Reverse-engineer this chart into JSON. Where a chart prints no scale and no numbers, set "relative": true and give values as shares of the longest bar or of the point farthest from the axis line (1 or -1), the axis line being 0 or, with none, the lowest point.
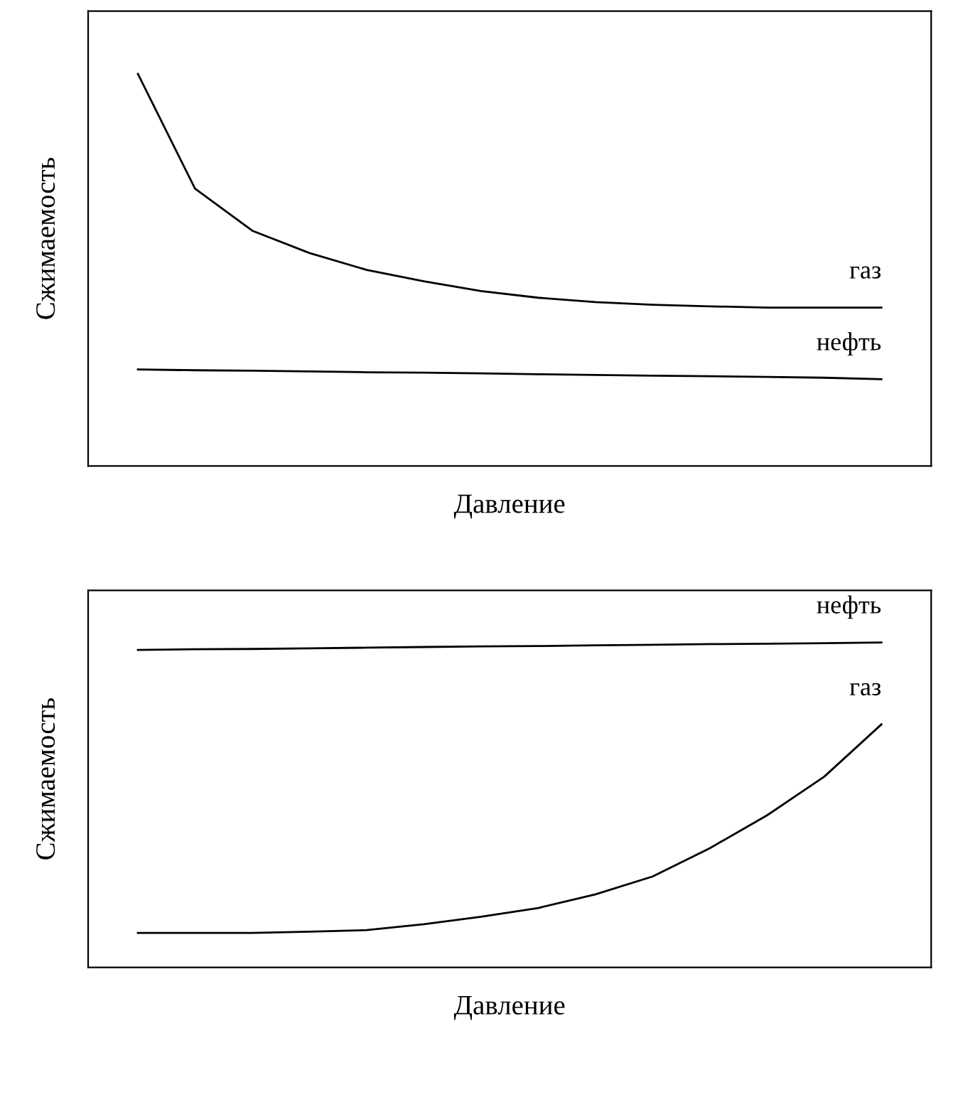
{
  "chart_data": [
    {
      "type": "line",
      "relative": true,
      "xlabel": "Давление",
      "ylabel": "Сжимаемость",
      "grid": false,
      "legend": false,
      "marker": "none",
      "line_style": "solid",
      "tick_labels": false,
      "categories": [
        null,
        null,
        null,
        null,
        null,
        null,
        null,
        null,
        null,
        null,
        null,
        null,
        null,
        null
      ],
      "series": [
        {
          "name": "газ",
          "color": "#000000",
          "values": [
            1.0,
            0.707,
            0.6,
            0.543,
            0.5,
            0.471,
            0.446,
            0.429,
            0.418,
            0.411,
            0.407,
            0.404,
            0.404,
            0.404
          ]
        },
        {
          "name": "нефть",
          "color": "#000000",
          "values": [
            0.246,
            0.244,
            0.243,
            0.241,
            0.239,
            0.238,
            0.236,
            0.234,
            0.232,
            0.23,
            0.229,
            0.227,
            0.225,
            0.221
          ]
        }
      ]
    },
    {
      "type": "line",
      "relative": true,
      "xlabel": "Давление",
      "ylabel": "Сжимаемость",
      "grid": false,
      "legend": false,
      "marker": "none",
      "line_style": "solid",
      "tick_labels": false,
      "categories": [
        null,
        null,
        null,
        null,
        null,
        null,
        null,
        null,
        null,
        null,
        null,
        null,
        null,
        null
      ],
      "series": [
        {
          "name": "нефть",
          "color": "#000000",
          "values": [
            0.977,
            0.979,
            0.98,
            0.982,
            0.984,
            0.986,
            0.988,
            0.989,
            0.991,
            0.993,
            0.995,
            0.996,
            0.998,
            1.0
          ]
        },
        {
          "name": "газ",
          "color": "#000000",
          "values": [
            0.106,
            0.106,
            0.106,
            0.11,
            0.115,
            0.133,
            0.156,
            0.183,
            0.225,
            0.28,
            0.367,
            0.468,
            0.587,
            0.748
          ]
        }
      ]
    }
  ]
}
